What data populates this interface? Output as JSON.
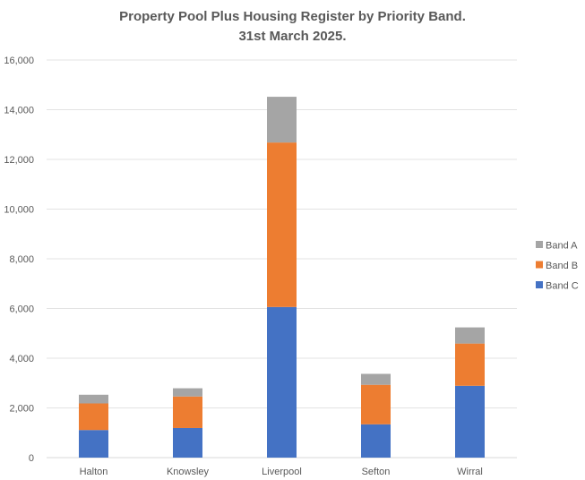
{
  "chart_data": {
    "type": "bar",
    "stacked": true,
    "title": "Property Pool Plus Housing Register by Priority Band.",
    "subtitle": "31st March 2025.",
    "xlabel": "",
    "ylabel": "",
    "categories": [
      "Halton",
      "Knowsley",
      "Liverpool",
      "Sefton",
      "Wirral"
    ],
    "series": [
      {
        "name": "Band C",
        "color": "#4472C4",
        "values": [
          1110,
          1190,
          6060,
          1340,
          2890
        ]
      },
      {
        "name": "Band B",
        "color": "#ED7D31",
        "values": [
          1070,
          1270,
          6620,
          1590,
          1700
        ]
      },
      {
        "name": "Band A",
        "color": "#A5A5A5",
        "values": [
          350,
          330,
          1840,
          440,
          650
        ]
      }
    ],
    "ylim": [
      0,
      16000
    ],
    "yticks": [
      0,
      2000,
      4000,
      6000,
      8000,
      10000,
      12000,
      14000,
      16000
    ],
    "ytick_labels": [
      "0",
      "2,000",
      "4,000",
      "6,000",
      "8,000",
      "10,000",
      "12,000",
      "14,000",
      "16,000"
    ],
    "grid": true,
    "legend": {
      "placement": "right",
      "order": [
        "Band A",
        "Band B",
        "Band C"
      ]
    }
  }
}
